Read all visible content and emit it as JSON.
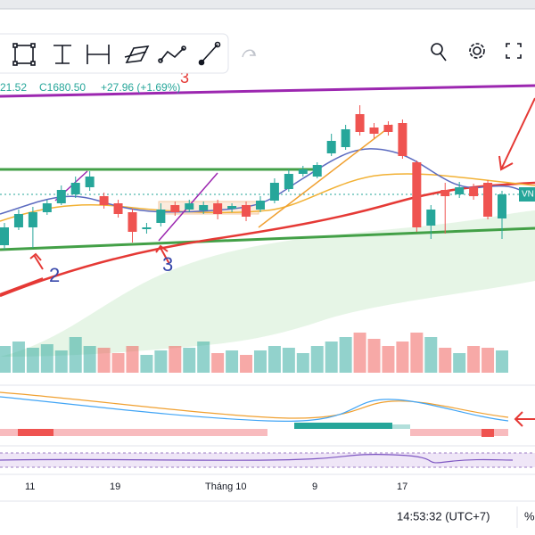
{
  "chart_data": {
    "type": "candlestick",
    "header": {
      "open_partial": "21.52",
      "close": "C1680.50",
      "change": "+27.96 (+1.69%)"
    },
    "price_tag": "VN",
    "annotations": {
      "top": "3",
      "wave_2": "2",
      "wave_3": "3"
    },
    "x_labels": [
      "11",
      "19",
      "Tháng 10",
      "9",
      "17"
    ],
    "status": {
      "time": "14:53:32 (UTC+7)",
      "percent": "%"
    },
    "ylim": [
      1478,
      1898
    ],
    "vlim": [
      0,
      60
    ],
    "up_color": "#26a69a",
    "down_color": "#ef5350",
    "candles": {
      "open": [
        1623,
        1643,
        1643,
        1660,
        1670,
        1680,
        1688,
        1678,
        1670,
        1660,
        1641,
        1648,
        1668,
        1663,
        1662,
        1670,
        1664,
        1668,
        1663,
        1673,
        1686,
        1703,
        1700,
        1726,
        1733,
        1770,
        1755,
        1758,
        1760,
        1716,
        1645,
        1685,
        1680,
        1688,
        1693,
        1653
      ],
      "close": [
        1643,
        1658,
        1660,
        1670,
        1685,
        1693,
        1700,
        1668,
        1658,
        1638,
        1643,
        1663,
        1660,
        1670,
        1668,
        1658,
        1667,
        1655,
        1673,
        1693,
        1703,
        1708,
        1713,
        1740,
        1753,
        1750,
        1748,
        1750,
        1723,
        1643,
        1663,
        1678,
        1688,
        1678,
        1655,
        1680
      ],
      "high": [
        1648,
        1663,
        1666,
        1674,
        1690,
        1700,
        1706,
        1682,
        1674,
        1664,
        1648,
        1670,
        1672,
        1674,
        1672,
        1674,
        1670,
        1672,
        1678,
        1698,
        1708,
        1712,
        1716,
        1748,
        1758,
        1780,
        1760,
        1762,
        1764,
        1718,
        1668,
        1693,
        1694,
        1692,
        1696,
        1684
      ],
      "low": [
        1618,
        1640,
        1620,
        1657,
        1668,
        1676,
        1684,
        1664,
        1654,
        1626,
        1636,
        1644,
        1656,
        1660,
        1658,
        1652,
        1660,
        1650,
        1660,
        1670,
        1683,
        1700,
        1698,
        1723,
        1730,
        1746,
        1743,
        1746,
        1720,
        1638,
        1630,
        1636,
        1676,
        1674,
        1652,
        1630
      ]
    },
    "volume": [
      30,
      35,
      28,
      32,
      25,
      40,
      30,
      28,
      22,
      30,
      20,
      25,
      30,
      28,
      35,
      22,
      25,
      20,
      25,
      30,
      28,
      22,
      30,
      35,
      40,
      45,
      38,
      30,
      35,
      45,
      40,
      28,
      22,
      30,
      28,
      25
    ]
  }
}
